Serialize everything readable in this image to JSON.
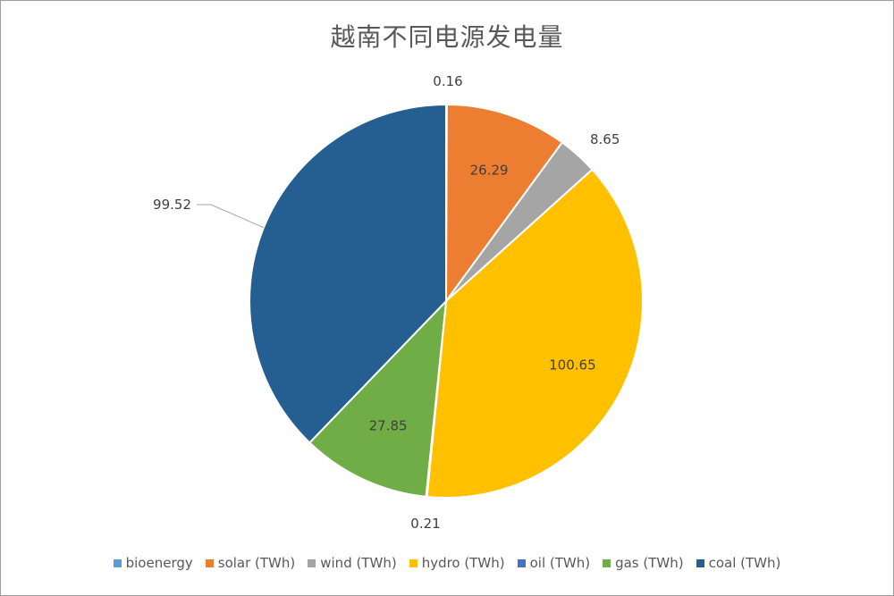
{
  "chart_data": {
    "type": "pie",
    "title": "越南不同电源发电量",
    "categories": [
      "bioenergy",
      "solar (TWh)",
      "wind (TWh)",
      "hydro (TWh)",
      "oil (TWh)",
      "gas (TWh)",
      "coal (TWh)"
    ],
    "values": [
      0.16,
      26.29,
      8.65,
      100.65,
      0.21,
      27.85,
      99.52
    ],
    "data_labels": [
      "0.16",
      "26.29",
      "8.65",
      "100.65",
      "0.21",
      "27.85",
      "99.52"
    ],
    "colors": [
      "#5b9bd5",
      "#ed7d31",
      "#a5a5a5",
      "#ffc000",
      "#4472c4",
      "#70ad47",
      "#255e91"
    ],
    "legend_position": "bottom"
  }
}
